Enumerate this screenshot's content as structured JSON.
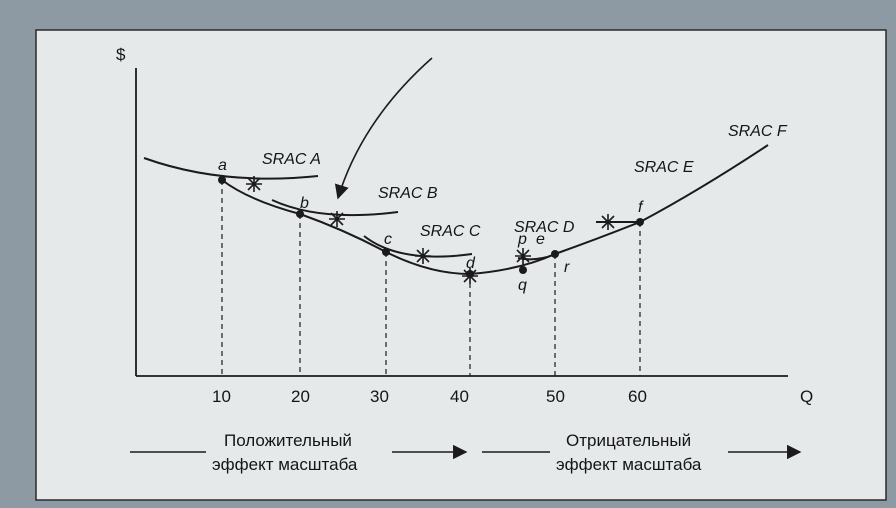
{
  "chart_data": {
    "type": "line",
    "ylabel": "$",
    "xlabel": "Q",
    "x_ticks": [
      "10",
      "20",
      "30",
      "40",
      "50",
      "60"
    ],
    "grid": false,
    "series": [
      {
        "name": "SRAC A"
      },
      {
        "name": "SRAC B"
      },
      {
        "name": "SRAC C"
      },
      {
        "name": "SRAC D"
      },
      {
        "name": "SRAC E"
      },
      {
        "name": "SRAC F"
      }
    ],
    "points": [
      {
        "label": "a",
        "q": 10
      },
      {
        "label": "b",
        "q": 20
      },
      {
        "label": "c",
        "q": 30
      },
      {
        "label": "d",
        "q": 40
      },
      {
        "label": "p",
        "q": 48
      },
      {
        "label": "e",
        "q": 50
      },
      {
        "label": "q",
        "q": 48
      },
      {
        "label": "r",
        "q": 50
      },
      {
        "label": "f",
        "q": 60
      }
    ]
  },
  "captions": {
    "positive_line1": "Положительный",
    "positive_line2": "эффект масштаба",
    "negative_line1": "Отрицательный",
    "negative_line2": "эффект масштаба"
  },
  "colors": {
    "paper": "#e6e9ea",
    "ink": "#1b1b1b"
  }
}
